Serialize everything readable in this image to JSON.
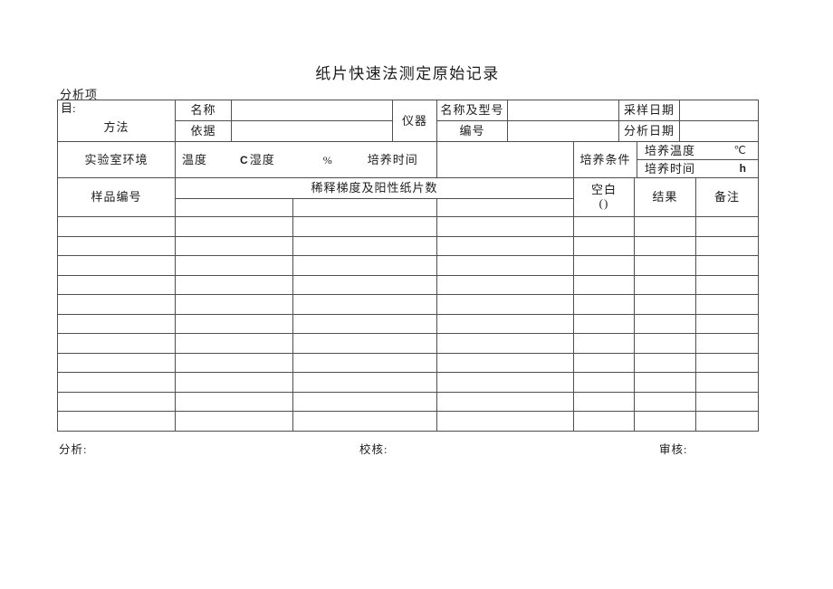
{
  "page": {
    "title": "纸片快速法测定原始记录",
    "analysis_item_top": "分析项",
    "analysis_item_wrap": "目:"
  },
  "header": {
    "method_label": "方法",
    "name_label": "名称",
    "name_value": "",
    "basis_label": "依据",
    "basis_value": "",
    "instrument_label": "仪器",
    "name_model_label": "名称及型号",
    "name_model_value": "",
    "number_label": "编号",
    "number_value": "",
    "sampling_date_label": "采样日期",
    "sampling_date_value": "",
    "analysis_date_label": "分析日期",
    "analysis_date_value": ""
  },
  "environment": {
    "lab_env_label": "实验室环境",
    "temperature_label": "温度",
    "temperature_unit": "C",
    "humidity_label": "湿度",
    "humidity_unit": "%",
    "incubation_time_label": "培养时间",
    "conditions_label": "培养条件",
    "incubation_temp_label": "培养温度",
    "incubation_temp_unit": "℃",
    "incubation_time2_label": "培养时间",
    "incubation_time_unit": "h"
  },
  "results_header": {
    "sample_no_label": "样品编号",
    "dilution_label": "稀释梯度及阳性纸片数",
    "blank_label": "空白",
    "blank_paren": "()",
    "result_label": "结果",
    "remark_label": "备注"
  },
  "body": {
    "row_count": 11,
    "column_count": 7
  },
  "footer": {
    "analyst_label": "分析:",
    "checker_label": "校核:",
    "reviewer_label": "审核:"
  }
}
